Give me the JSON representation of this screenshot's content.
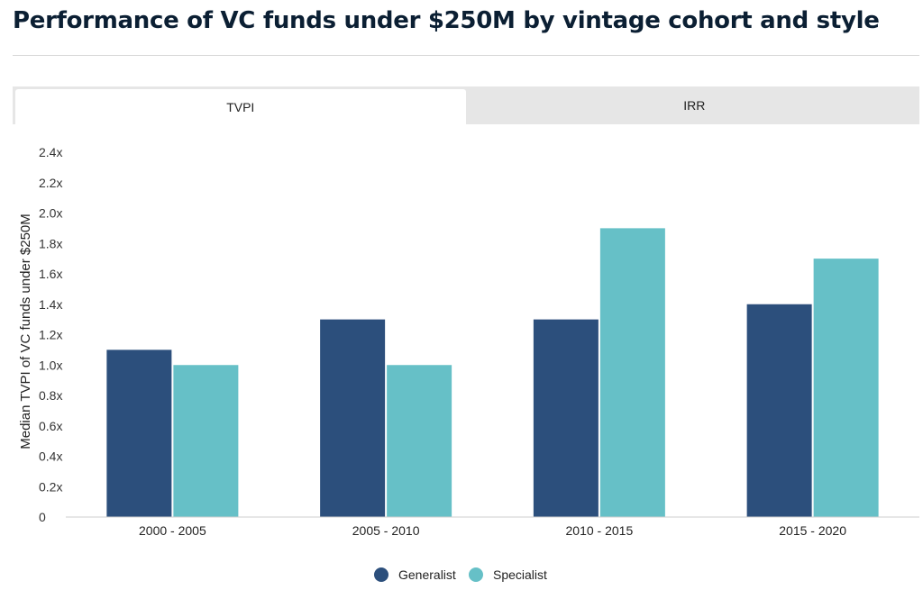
{
  "title": "Performance of VC funds under $250M by vintage cohort and style",
  "tabs": [
    {
      "label": "TVPI",
      "active": true
    },
    {
      "label": "IRR",
      "active": false
    }
  ],
  "colors": {
    "generalist": "#2c4f7c",
    "specialist": "#66c0c7"
  },
  "chart_data": {
    "type": "bar",
    "ylabel": "Median TVPI of VC funds under $250M",
    "xlabel": "",
    "ylim": [
      0,
      2.4
    ],
    "yticks": [
      0,
      0.2,
      0.4,
      0.6,
      0.8,
      1.0,
      1.2,
      1.4,
      1.6,
      1.8,
      2.0,
      2.2,
      2.4
    ],
    "ytick_labels": [
      "0",
      "0.2x",
      "0.4x",
      "0.6x",
      "0.8x",
      "1.0x",
      "1.2x",
      "1.4x",
      "1.6x",
      "1.8x",
      "2.0x",
      "2.2x",
      "2.4x"
    ],
    "grid": false,
    "legend_position": "bottom",
    "categories": [
      "2000 - 2005",
      "2005 - 2010",
      "2010 - 2015",
      "2015 - 2020"
    ],
    "series": [
      {
        "name": "Generalist",
        "color": "#2c4f7c",
        "values": [
          1.1,
          1.3,
          1.3,
          1.4
        ]
      },
      {
        "name": "Specialist",
        "color": "#66c0c7",
        "values": [
          1.0,
          1.0,
          1.9,
          1.7
        ]
      }
    ]
  }
}
